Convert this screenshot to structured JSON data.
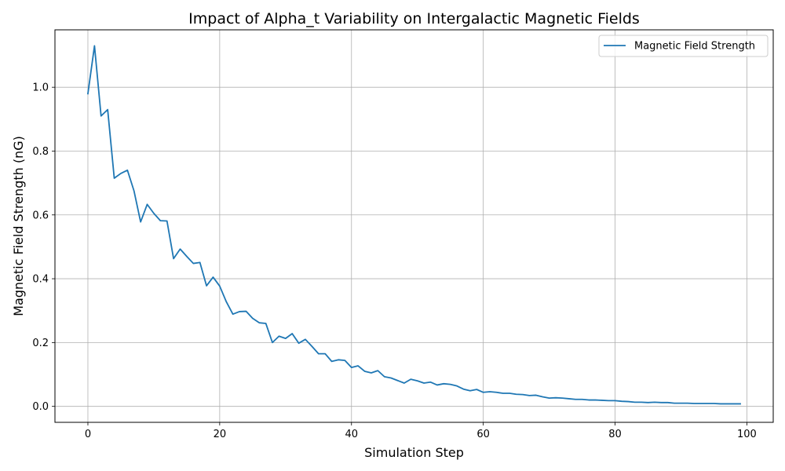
{
  "chart_data": {
    "type": "line",
    "title": "Impact of Alpha_t Variability on Intergalactic Magnetic Fields",
    "xlabel": "Simulation Step",
    "ylabel": "Magnetic Field Strength (nG)",
    "xlim": [
      -5,
      104
    ],
    "ylim": [
      -0.05,
      1.18
    ],
    "xticks": [
      0,
      20,
      40,
      60,
      80,
      100
    ],
    "yticks": [
      0.0,
      0.2,
      0.4,
      0.6,
      0.8,
      1.0
    ],
    "xtick_labels": [
      "0",
      "20",
      "40",
      "60",
      "80",
      "100"
    ],
    "ytick_labels": [
      "0.0",
      "0.2",
      "0.4",
      "0.6",
      "0.8",
      "1.0"
    ],
    "grid": true,
    "legend_position": "top-right",
    "line_color": "#1f77b4",
    "series": [
      {
        "name": "Magnetic Field Strength",
        "x": [
          0,
          1,
          2,
          3,
          4,
          5,
          6,
          7,
          8,
          9,
          10,
          11,
          12,
          13,
          14,
          15,
          16,
          17,
          18,
          19,
          20,
          21,
          22,
          23,
          24,
          25,
          26,
          27,
          28,
          29,
          30,
          31,
          32,
          33,
          34,
          35,
          36,
          37,
          38,
          39,
          40,
          41,
          42,
          43,
          44,
          45,
          46,
          47,
          48,
          49,
          50,
          51,
          52,
          53,
          54,
          55,
          56,
          57,
          58,
          59,
          60,
          61,
          62,
          63,
          64,
          65,
          66,
          67,
          68,
          69,
          70,
          71,
          72,
          73,
          74,
          75,
          76,
          77,
          78,
          79,
          80,
          81,
          82,
          83,
          84,
          85,
          86,
          87,
          88,
          89,
          90,
          91,
          92,
          93,
          94,
          95,
          96,
          97,
          98,
          99
        ],
        "values": [
          0.98,
          1.13,
          0.91,
          0.93,
          0.715,
          0.73,
          0.74,
          0.675,
          0.578,
          0.633,
          0.605,
          0.582,
          0.581,
          0.463,
          0.493,
          0.47,
          0.448,
          0.451,
          0.378,
          0.405,
          0.377,
          0.328,
          0.289,
          0.297,
          0.298,
          0.276,
          0.262,
          0.26,
          0.2,
          0.22,
          0.213,
          0.228,
          0.198,
          0.21,
          0.188,
          0.165,
          0.165,
          0.141,
          0.146,
          0.144,
          0.122,
          0.127,
          0.11,
          0.105,
          0.112,
          0.093,
          0.089,
          0.081,
          0.073,
          0.085,
          0.08,
          0.073,
          0.076,
          0.067,
          0.071,
          0.069,
          0.064,
          0.054,
          0.049,
          0.053,
          0.044,
          0.046,
          0.044,
          0.041,
          0.041,
          0.038,
          0.037,
          0.034,
          0.035,
          0.03,
          0.026,
          0.027,
          0.026,
          0.024,
          0.022,
          0.022,
          0.02,
          0.02,
          0.019,
          0.018,
          0.018,
          0.016,
          0.015,
          0.013,
          0.013,
          0.012,
          0.013,
          0.012,
          0.012,
          0.01,
          0.01,
          0.01,
          0.009,
          0.009,
          0.009,
          0.009,
          0.008,
          0.008,
          0.008,
          0.008
        ]
      }
    ]
  }
}
